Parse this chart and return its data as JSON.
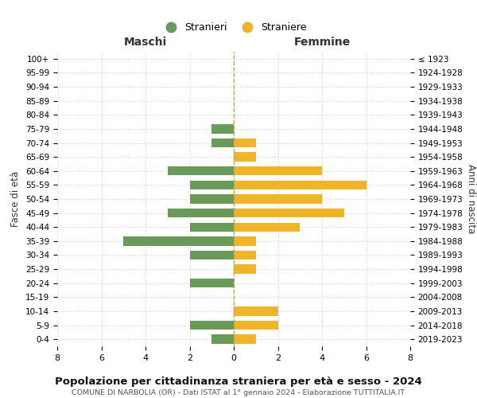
{
  "age_groups": [
    "0-4",
    "5-9",
    "10-14",
    "15-19",
    "20-24",
    "25-29",
    "30-34",
    "35-39",
    "40-44",
    "45-49",
    "50-54",
    "55-59",
    "60-64",
    "65-69",
    "70-74",
    "75-79",
    "80-84",
    "85-89",
    "90-94",
    "95-99",
    "100+"
  ],
  "birth_years": [
    "2019-2023",
    "2014-2018",
    "2009-2013",
    "2004-2008",
    "1999-2003",
    "1994-1998",
    "1989-1993",
    "1984-1988",
    "1979-1983",
    "1974-1978",
    "1969-1973",
    "1964-1968",
    "1959-1963",
    "1954-1958",
    "1949-1953",
    "1944-1948",
    "1939-1943",
    "1934-1938",
    "1929-1933",
    "1924-1928",
    "≤ 1923"
  ],
  "maschi": [
    1,
    2,
    0,
    0,
    2,
    0,
    2,
    5,
    2,
    3,
    2,
    2,
    3,
    0,
    1,
    1,
    0,
    0,
    0,
    0,
    0
  ],
  "femmine": [
    1,
    2,
    2,
    0,
    0,
    1,
    1,
    1,
    3,
    5,
    4,
    6,
    4,
    1,
    1,
    0,
    0,
    0,
    0,
    0,
    0
  ],
  "maschi_color": "#6a9a5a",
  "femmine_color": "#f0b429",
  "background_color": "#ffffff",
  "grid_color": "#d0d0d0",
  "center_line_color": "#aaa860",
  "title": "Popolazione per cittadinanza straniera per età e sesso - 2024",
  "subtitle": "COMUNE DI NARBOLIA (OR) - Dati ISTAT al 1° gennaio 2024 - Elaborazione TUTTITALIA.IT",
  "left_label": "Maschi",
  "right_label": "Femmine",
  "left_axis_label": "Fasce di età",
  "right_axis_label": "Anni di nascita",
  "legend_stranieri": "Stranieri",
  "legend_straniere": "Straniere",
  "xlim": 8
}
